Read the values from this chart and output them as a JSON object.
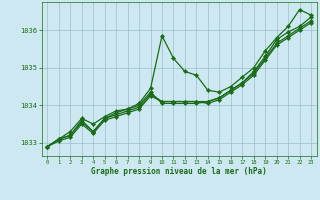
{
  "xlabel": "Graphe pression niveau de la mer (hPa)",
  "x": [
    0,
    1,
    2,
    3,
    4,
    5,
    6,
    7,
    8,
    9,
    10,
    11,
    12,
    13,
    14,
    15,
    16,
    17,
    18,
    19,
    20,
    21,
    22,
    23
  ],
  "series": [
    [
      1032.9,
      1033.1,
      1033.3,
      1033.65,
      1033.5,
      1033.7,
      1033.85,
      1033.9,
      1034.05,
      1034.45,
      1035.85,
      1035.25,
      1034.9,
      1034.8,
      1034.4,
      1034.35,
      1034.5,
      1034.75,
      1035.0,
      1035.45,
      1035.8,
      1036.1,
      1036.55,
      1036.4
    ],
    [
      1032.9,
      1033.1,
      1033.2,
      1033.6,
      1033.3,
      1033.65,
      1033.8,
      1033.9,
      1034.0,
      1034.35,
      1034.05,
      1034.05,
      1034.05,
      1034.05,
      1034.1,
      1034.2,
      1034.4,
      1034.6,
      1034.9,
      1035.3,
      1035.75,
      1035.95,
      1036.1,
      1036.35
    ],
    [
      1032.9,
      1033.1,
      1033.2,
      1033.55,
      1033.3,
      1033.65,
      1033.75,
      1033.85,
      1033.95,
      1034.3,
      1034.1,
      1034.1,
      1034.1,
      1034.1,
      1034.1,
      1034.2,
      1034.4,
      1034.6,
      1034.85,
      1035.25,
      1035.65,
      1035.85,
      1036.05,
      1036.25
    ],
    [
      1032.9,
      1033.05,
      1033.15,
      1033.5,
      1033.25,
      1033.6,
      1033.7,
      1033.8,
      1033.9,
      1034.25,
      1034.1,
      1034.1,
      1034.1,
      1034.1,
      1034.05,
      1034.15,
      1034.35,
      1034.55,
      1034.8,
      1035.2,
      1035.6,
      1035.8,
      1036.0,
      1036.2
    ]
  ],
  "line_color": "#1a6b1a",
  "marker": "D",
  "marker_size": 2.2,
  "linewidth": 0.9,
  "bg_color": "#cde8f0",
  "grid_color": "#9bbfcc",
  "text_color": "#1a6b1a",
  "ylim": [
    1032.65,
    1036.75
  ],
  "yticks": [
    1033,
    1034,
    1035,
    1036
  ],
  "xticks": [
    0,
    1,
    2,
    3,
    4,
    5,
    6,
    7,
    8,
    9,
    10,
    11,
    12,
    13,
    14,
    15,
    16,
    17,
    18,
    19,
    20,
    21,
    22,
    23
  ],
  "xlim": [
    -0.5,
    23.5
  ]
}
